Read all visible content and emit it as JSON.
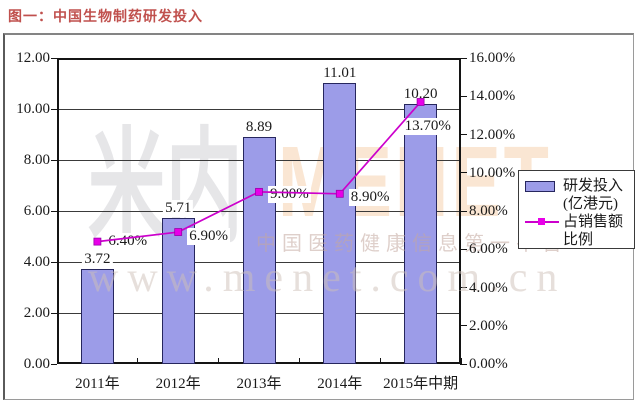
{
  "title": "图一：中国生物制药研发投入",
  "chart_data": {
    "type": "bar",
    "subtype": "bar-line-combo",
    "title": "图一：中国生物制药研发投入",
    "categories": [
      "2011年",
      "2012年",
      "2013年",
      "2014年",
      "2015年中期"
    ],
    "series": [
      {
        "name": "研发投入（亿港元）",
        "chart": "bar",
        "axis": "left",
        "values": [
          3.72,
          5.71,
          8.89,
          11.01,
          10.2
        ],
        "labels": [
          "3.72",
          "5.71",
          "8.89",
          "11.01",
          "10.20"
        ]
      },
      {
        "name": "占销售额比例",
        "chart": "line",
        "axis": "right",
        "values": [
          6.4,
          6.9,
          9.0,
          8.9,
          13.7
        ],
        "labels": [
          "6.40%",
          "6.90%",
          "9.00%",
          "8.90%",
          "13.70%"
        ]
      }
    ],
    "left_axis": {
      "min": 0,
      "max": 12,
      "tick_values": [
        12,
        10,
        8,
        6,
        4,
        2,
        0
      ],
      "tick_labels": [
        "12.00",
        "10.00",
        "8.00",
        "6.00",
        "4.00",
        "2.00",
        "0.00"
      ]
    },
    "right_axis": {
      "min": 0,
      "max": 16,
      "tick_values": [
        16,
        14,
        12,
        10,
        8,
        6,
        4,
        2,
        0
      ],
      "tick_labels": [
        "16.00%",
        "14.00%",
        "12.00%",
        "10.00%",
        "8.00%",
        "6.00%",
        "4.00%",
        "2.00%",
        "0.00%"
      ]
    },
    "grid": "horizontal-only",
    "legend_position": "middle-right"
  },
  "legend": {
    "items": [
      {
        "swatch": "bar",
        "line1": "研发投入",
        "line2": "(亿港元)"
      },
      {
        "swatch": "line",
        "line1": "占销售额",
        "line2": "比例"
      }
    ]
  },
  "watermark": {
    "logo_cn": "米内",
    "brand": "MENET",
    "tagline": "中国医药健康信息第一平台",
    "url": "www.menet.com.cn"
  },
  "colors": {
    "bar_fill": "#9C9CE8",
    "bar_border": "#26265E",
    "line": "#CC00CC",
    "marker_fill": "#E800E8",
    "marker_border": "#9900AA",
    "title_red": "#C0504D",
    "grid": "#3A3A3A",
    "watermark_gray": "#8F8F9C",
    "watermark_orange": "#F2B279",
    "watermark_tagline": "#C4A8A0",
    "watermark_url": "#CFC0B8"
  }
}
